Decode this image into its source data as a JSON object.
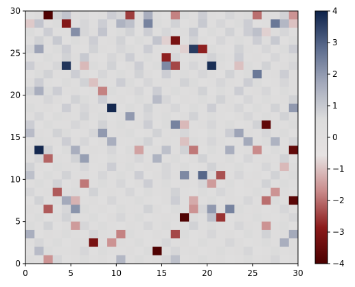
{
  "chart_data": {
    "type": "heatmap",
    "title": "",
    "xlabel": "",
    "ylabel": "",
    "xlim": [
      0,
      30
    ],
    "ylim": [
      0,
      30
    ],
    "x_ticks": [
      "0",
      "5",
      "10",
      "15",
      "20",
      "25",
      "30"
    ],
    "y_ticks": [
      "0",
      "5",
      "10",
      "15",
      "20",
      "25",
      "30"
    ],
    "colorbar": {
      "min": -4,
      "max": 4,
      "ticks": [
        "4",
        "3",
        "2",
        "1",
        "0",
        "−1",
        "−2",
        "−3",
        "−4"
      ],
      "colormap": "red-gray-blue diverging",
      "stops": [
        "#4a0000",
        "#8b1a1a",
        "#c98a8a",
        "#e6e2e2",
        "#dcdcdc",
        "#a3a9bb",
        "#5a6a8c",
        "#0d2249"
      ]
    },
    "grid": false,
    "legend": "none",
    "rows": 30,
    "cols": 30,
    "row_order": "top-to-bottom (y from 30 down to 0)",
    "values": [
      [
        0.2,
        0.5,
        -3.9,
        0.8,
        1.1,
        0.3,
        0.6,
        0.2,
        0.4,
        0.9,
        0.7,
        -2.5,
        0.3,
        1.6,
        0.5,
        0.2,
        -1.8,
        0.6,
        0.4,
        0.9,
        0.3,
        0.2,
        0.7,
        0.5,
        0.6,
        -2.0,
        0.4,
        0.3,
        0.8,
        -1.6
      ],
      [
        -0.9,
        1.1,
        0.4,
        0.6,
        -3.0,
        0.2,
        0.7,
        0.3,
        0.9,
        0.5,
        1.5,
        1.2,
        0.4,
        2.4,
        0.6,
        0.3,
        0.8,
        0.2,
        0.5,
        1.0,
        0.4,
        0.7,
        0.3,
        0.6,
        0.9,
        0.2,
        0.4,
        2.6,
        1.4,
        -1.0
      ],
      [
        0.6,
        0.2,
        0.9,
        0.4,
        0.3,
        2.2,
        0.7,
        0.5,
        1.1,
        0.3,
        0.6,
        0.8,
        0.2,
        0.9,
        0.4,
        0.7,
        0.3,
        0.5,
        1.0,
        0.2,
        0.6,
        0.4,
        0.8,
        0.3,
        0.9,
        1.2,
        -0.8,
        0.5,
        0.7,
        0.3
      ],
      [
        0.3,
        0.8,
        0.5,
        1.0,
        0.2,
        0.6,
        0.4,
        0.9,
        0.3,
        0.5,
        0.8,
        0.2,
        0.6,
        0.4,
        1.1,
        -0.8,
        -3.2,
        0.3,
        0.8,
        0.5,
        0.2,
        0.7,
        0.4,
        0.6,
        0.3,
        0.9,
        0.5,
        1.0,
        0.2,
        0.6
      ],
      [
        0.7,
        1.8,
        0.3,
        0.6,
        0.9,
        0.4,
        0.2,
        0.8,
        0.5,
        0.3,
        0.7,
        0.6,
        0.4,
        0.9,
        0.3,
        0.2,
        0.5,
        -0.8,
        3.6,
        -2.8,
        0.6,
        0.4,
        0.2,
        0.8,
        0.5,
        0.3,
        0.7,
        0.4,
        0.6,
        0.9
      ],
      [
        0.4,
        0.2,
        0.6,
        0.3,
        0.8,
        0.5,
        1.0,
        0.4,
        0.2,
        0.7,
        0.5,
        0.9,
        0.3,
        0.6,
        0.4,
        -2.8,
        0.7,
        0.2,
        0.5,
        0.3,
        0.8,
        0.6,
        0.4,
        0.9,
        0.3,
        0.5,
        0.2,
        0.7,
        0.4,
        0.6
      ],
      [
        0.9,
        0.5,
        0.3,
        0.7,
        3.7,
        0.3,
        -1.1,
        0.6,
        0.4,
        0.8,
        0.2,
        0.5,
        0.9,
        0.3,
        0.6,
        2.3,
        -2.4,
        0.4,
        0.7,
        0.3,
        3.8,
        0.5,
        0.2,
        -1.0,
        0.6,
        0.4,
        0.8,
        0.3,
        0.5,
        0.7
      ],
      [
        0.2,
        0.6,
        0.8,
        0.4,
        0.3,
        0.9,
        0.5,
        0.2,
        0.7,
        0.4,
        0.6,
        0.3,
        0.8,
        0.5,
        0.2,
        0.9,
        0.4,
        0.6,
        0.3,
        0.7,
        0.5,
        0.2,
        0.8,
        0.4,
        0.6,
        2.6,
        0.3,
        0.5,
        0.9,
        0.4
      ],
      [
        0.5,
        0.9,
        0.4,
        0.2,
        0.6,
        0.3,
        0.8,
        -1.0,
        0.5,
        0.3,
        0.9,
        0.6,
        0.2,
        0.7,
        0.4,
        0.5,
        0.3,
        0.8,
        0.6,
        0.2,
        0.4,
        0.7,
        0.5,
        0.3,
        0.9,
        0.6,
        0.2,
        0.4,
        0.7,
        0.3
      ],
      [
        0.8,
        1.6,
        0.6,
        0.9,
        0.3,
        0.5,
        0.2,
        0.4,
        -1.8,
        0.6,
        0.3,
        0.5,
        0.7,
        0.2,
        0.9,
        0.4,
        0.6,
        0.3,
        0.5,
        0.8,
        0.2,
        0.6,
        0.4,
        0.9,
        0.3,
        0.5,
        0.7,
        0.2,
        0.6,
        0.4
      ],
      [
        0.3,
        0.4,
        0.7,
        0.5,
        0.2,
        0.8,
        0.6,
        0.3,
        0.9,
        0.4,
        0.5,
        0.2,
        0.6,
        0.3,
        1.3,
        0.7,
        0.2,
        0.5,
        0.4,
        0.6,
        0.3,
        0.8,
        0.5,
        0.2,
        0.7,
        0.4,
        0.6,
        0.3,
        0.5,
        0.8
      ],
      [
        0.6,
        0.3,
        0.5,
        0.2,
        0.9,
        0.4,
        0.7,
        0.5,
        0.3,
        3.9,
        0.2,
        0.6,
        0.4,
        0.8,
        0.3,
        0.5,
        0.7,
        0.2,
        0.6,
        0.4,
        0.9,
        0.3,
        0.5,
        0.7,
        0.2,
        0.6,
        0.4,
        0.8,
        0.3,
        2.0
      ],
      [
        0.4,
        0.7,
        0.2,
        0.6,
        0.5,
        0.3,
        0.8,
        0.4,
        0.6,
        0.2,
        0.5,
        2.0,
        0.3,
        0.7,
        0.4,
        0.6,
        0.2,
        0.5,
        0.8,
        0.3,
        0.6,
        0.4,
        0.2,
        0.5,
        0.7,
        0.3,
        0.6,
        0.4,
        0.8,
        0.5
      ],
      [
        0.9,
        0.2,
        0.6,
        0.4,
        0.3,
        0.7,
        0.5,
        0.2,
        0.8,
        0.4,
        0.6,
        0.3,
        0.5,
        0.9,
        0.2,
        0.6,
        2.4,
        -1.1,
        0.4,
        0.5,
        0.7,
        0.3,
        0.6,
        0.2,
        0.4,
        0.8,
        -3.6,
        0.5,
        0.3,
        0.6
      ],
      [
        1.3,
        0.5,
        0.3,
        0.8,
        0.6,
        0.2,
        0.4,
        0.7,
        2.0,
        0.3,
        0.5,
        0.6,
        0.2,
        0.4,
        0.8,
        0.3,
        0.5,
        0.7,
        0.4,
        0.2,
        0.6,
        0.3,
        0.9,
        1.8,
        0.5,
        0.4,
        0.7,
        0.3,
        0.6,
        0.2
      ],
      [
        0.2,
        0.6,
        0.5,
        0.3,
        0.9,
        0.4,
        0.7,
        0.2,
        0.5,
        1.6,
        0.4,
        0.3,
        0.6,
        0.8,
        0.2,
        0.5,
        0.4,
        -1.0,
        0.6,
        0.3,
        0.7,
        0.5,
        0.2,
        0.4,
        1.7,
        0.3,
        0.6,
        1.5,
        0.4,
        0.7
      ],
      [
        0.5,
        3.9,
        0.8,
        0.2,
        0.6,
        1.6,
        0.3,
        0.5,
        0.4,
        0.7,
        0.2,
        0.6,
        -1.4,
        0.3,
        0.5,
        1.2,
        0.4,
        0.8,
        -1.9,
        0.2,
        0.6,
        0.4,
        1.6,
        0.3,
        0.5,
        -1.7,
        0.2,
        0.6,
        0.4,
        -3.6
      ],
      [
        0.3,
        0.7,
        -2.1,
        0.5,
        0.3,
        0.8,
        1.9,
        0.4,
        0.2,
        0.6,
        0.3,
        0.5,
        0.7,
        0.4,
        1.5,
        0.3,
        0.6,
        0.2,
        0.5,
        0.8,
        0.4,
        0.3,
        0.6,
        0.2,
        0.7,
        0.4,
        0.5,
        0.3,
        0.8,
        0.2
      ],
      [
        0.8,
        0.4,
        0.2,
        0.6,
        0.5,
        0.3,
        0.7,
        0.2,
        0.4,
        0.9,
        0.3,
        0.6,
        0.2,
        0.5,
        0.4,
        0.7,
        0.3,
        0.6,
        0.2,
        0.4,
        0.8,
        0.5,
        0.3,
        0.6,
        0.2,
        0.4,
        0.7,
        0.3,
        -1.1,
        0.5
      ],
      [
        1.2,
        0.2,
        0.6,
        0.3,
        0.8,
        0.4,
        0.5,
        0.2,
        0.7,
        0.3,
        0.6,
        0.4,
        0.9,
        0.2,
        0.5,
        0.7,
        0.3,
        2.3,
        0.4,
        2.9,
        0.6,
        -2.3,
        0.4,
        0.7,
        0.3,
        0.5,
        0.2,
        0.8,
        0.4,
        0.6
      ],
      [
        0.4,
        0.6,
        0.3,
        0.8,
        0.2,
        0.5,
        -1.9,
        0.4,
        0.6,
        0.3,
        0.7,
        0.2,
        0.5,
        0.9,
        0.4,
        0.6,
        0.2,
        0.5,
        0.3,
        0.7,
        -1.5,
        0.4,
        0.6,
        0.2,
        0.5,
        0.3,
        0.8,
        0.4,
        0.6,
        0.3
      ],
      [
        0.7,
        0.3,
        0.5,
        -2.2,
        0.4,
        0.6,
        0.2,
        0.8,
        0.3,
        0.5,
        0.4,
        0.7,
        0.2,
        0.6,
        0.3,
        0.5,
        0.8,
        0.4,
        0.2,
        0.6,
        0.3,
        0.7,
        0.5,
        0.2,
        0.4,
        0.6,
        0.3,
        -1.6,
        0.5,
        0.2
      ],
      [
        0.2,
        0.8,
        0.4,
        0.6,
        1.7,
        -1.2,
        0.3,
        0.5,
        0.2,
        0.7,
        0.4,
        0.3,
        0.6,
        0.4,
        0.2,
        0.5,
        0.9,
        0.3,
        -1.3,
        0.4,
        0.6,
        0.2,
        0.5,
        0.3,
        0.7,
        0.4,
        -2.0,
        0.6,
        0.3,
        -3.7
      ],
      [
        0.5,
        0.3,
        -2.2,
        0.4,
        0.7,
        2.1,
        0.6,
        0.3,
        0.5,
        0.2,
        0.6,
        0.4,
        0.3,
        0.8,
        0.5,
        0.2,
        0.6,
        0.3,
        -1.6,
        0.7,
        2.0,
        0.4,
        2.4,
        0.6,
        0.3,
        0.5,
        0.2,
        0.4,
        0.7,
        0.3
      ],
      [
        0.3,
        0.6,
        0.2,
        0.5,
        0.8,
        0.4,
        0.3,
        0.6,
        0.2,
        0.5,
        0.7,
        0.3,
        0.6,
        0.2,
        0.4,
        0.5,
        0.3,
        -3.9,
        0.6,
        0.4,
        1.2,
        -2.6,
        0.2,
        0.5,
        0.3,
        0.6,
        0.4,
        0.2,
        0.5,
        0.7
      ],
      [
        0.6,
        0.4,
        0.8,
        0.2,
        0.5,
        -1.5,
        0.7,
        0.3,
        0.6,
        0.4,
        0.2,
        0.5,
        0.3,
        0.7,
        0.4,
        0.6,
        0.2,
        0.5,
        0.8,
        0.3,
        0.6,
        0.4,
        0.2,
        0.7,
        0.5,
        0.3,
        -1.6,
        0.4,
        0.6,
        0.2
      ],
      [
        1.6,
        0.2,
        0.5,
        0.3,
        0.6,
        0.4,
        0.2,
        0.7,
        0.5,
        0.3,
        -1.8,
        0.6,
        0.4,
        0.2,
        0.5,
        0.3,
        -2.4,
        0.6,
        0.2,
        0.4,
        0.7,
        0.3,
        0.5,
        0.2,
        0.6,
        0.4,
        0.8,
        0.3,
        0.5,
        1.7
      ],
      [
        0.4,
        0.7,
        0.3,
        0.6,
        0.2,
        0.5,
        0.3,
        -3.2,
        0.4,
        -1.6,
        0.5,
        0.3,
        0.6,
        0.2,
        0.4,
        0.7,
        0.3,
        0.5,
        0.2,
        0.6,
        0.4,
        0.3,
        0.7,
        0.5,
        0.2,
        0.4,
        0.6,
        0.3,
        1.6,
        0.5
      ],
      [
        0.2,
        1.3,
        0.6,
        0.4,
        0.3,
        0.5,
        0.7,
        0.2,
        0.6,
        0.4,
        0.3,
        0.5,
        0.2,
        0.6,
        -3.9,
        0.4,
        0.7,
        0.3,
        0.5,
        0.2,
        0.4,
        0.6,
        0.3,
        0.5,
        0.7,
        0.2,
        0.4,
        0.6,
        0.3,
        0.5
      ],
      [
        0.5,
        0.3,
        -1.6,
        0.7,
        0.2,
        0.4,
        0.6,
        0.3,
        0.5,
        0.2,
        1.4,
        0.4,
        0.6,
        0.3,
        0.5,
        0.7,
        1.2,
        0.2,
        0.4,
        0.6,
        0.3,
        0.5,
        0.2,
        0.4,
        0.6,
        0.3,
        0.5,
        0.7,
        0.2,
        0.4
      ]
    ]
  }
}
